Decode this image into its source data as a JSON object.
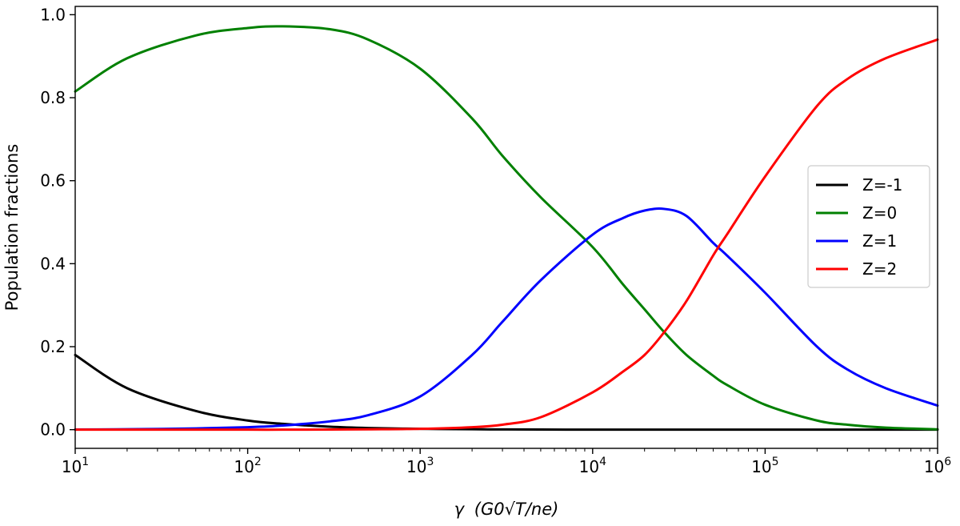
{
  "chart_data": {
    "type": "line",
    "xscale": "log",
    "xlim": [
      10,
      1000000
    ],
    "ylim": [
      -0.045,
      1.02
    ],
    "xlabel": {
      "main": "γ",
      "paren": "(G0√T/ne)"
    },
    "ylabel": "Population fractions",
    "yticks": [
      0.0,
      0.2,
      0.4,
      0.6,
      0.8,
      1.0
    ],
    "ytick_labels": [
      "0.0",
      "0.2",
      "0.4",
      "0.6",
      "0.8",
      "1.0"
    ],
    "xticks": [
      10,
      100,
      1000,
      10000,
      100000,
      1000000
    ],
    "xtick_labels": [
      {
        "base": "10",
        "exp": "1"
      },
      {
        "base": "10",
        "exp": "2"
      },
      {
        "base": "10",
        "exp": "3"
      },
      {
        "base": "10",
        "exp": "4"
      },
      {
        "base": "10",
        "exp": "5"
      },
      {
        "base": "10",
        "exp": "6"
      }
    ],
    "grid": false,
    "legend_position": "center-right",
    "x": [
      10,
      20,
      50,
      100,
      160,
      300,
      500,
      1000,
      2000,
      3000,
      5000,
      10000,
      15000,
      20000,
      26000,
      35000,
      50000,
      60000,
      100000,
      200000,
      300000,
      500000,
      1000000
    ],
    "series": [
      {
        "name": "Z=-1",
        "color": "#000000",
        "values": [
          0.18,
          0.1,
          0.045,
          0.022,
          0.014,
          0.007,
          0.004,
          0.002,
          0.001,
          0.0005,
          0.0003,
          0.0001,
          0,
          0,
          0,
          0,
          0,
          0,
          0,
          0,
          0,
          0,
          0
        ]
      },
      {
        "name": "Z=0",
        "color": "#008000",
        "values": [
          0.815,
          0.895,
          0.95,
          0.968,
          0.972,
          0.965,
          0.94,
          0.87,
          0.75,
          0.66,
          0.56,
          0.44,
          0.35,
          0.29,
          0.235,
          0.18,
          0.13,
          0.108,
          0.06,
          0.022,
          0.012,
          0.005,
          0.0008
        ]
      },
      {
        "name": "Z=1",
        "color": "#0000ff",
        "values": [
          0.0003,
          0.001,
          0.003,
          0.006,
          0.01,
          0.02,
          0.035,
          0.08,
          0.18,
          0.26,
          0.36,
          0.47,
          0.51,
          0.528,
          0.532,
          0.515,
          0.45,
          0.42,
          0.33,
          0.2,
          0.145,
          0.1,
          0.058
        ]
      },
      {
        "name": "Z=2",
        "color": "#ff0000",
        "values": [
          0,
          0,
          0,
          0,
          0,
          0.0003,
          0.0008,
          0.002,
          0.006,
          0.012,
          0.03,
          0.09,
          0.14,
          0.18,
          0.235,
          0.31,
          0.42,
          0.47,
          0.61,
          0.78,
          0.845,
          0.895,
          0.94
        ]
      }
    ]
  }
}
